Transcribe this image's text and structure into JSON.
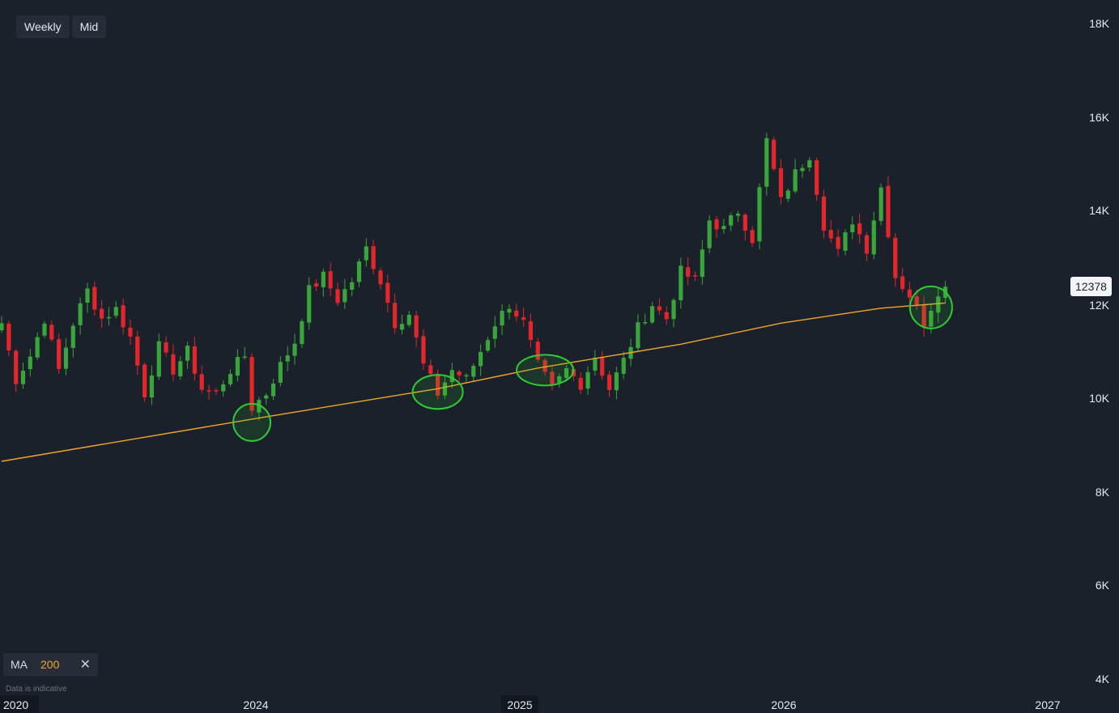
{
  "toolbar": {
    "interval_label": "Weekly",
    "price_label": "Mid"
  },
  "indicator": {
    "name": "MA",
    "period": "200",
    "remove_icon": "close-icon",
    "close_glyph": "✕"
  },
  "disclaimer": "Data is indicative",
  "last_price_label": "12378",
  "colors": {
    "background": "#1b212b",
    "up": "#3aa53a",
    "down": "#e3262c",
    "ma": "#f0a72a",
    "highlight": "#2ecc32"
  },
  "chart_data": {
    "type": "candlestick",
    "interval": "weekly",
    "y_ticks": [
      "18K",
      "16K",
      "14K",
      "12K",
      "10K",
      "8K",
      "6K",
      "4K"
    ],
    "x_ticks": [
      "2020",
      "2024",
      "2025",
      "2026",
      "2027"
    ],
    "ylim": [
      4000,
      18000
    ],
    "last_price": 12378,
    "overlay": {
      "name": "MA",
      "period": 200
    },
    "close_path": [
      [
        0,
        11600
      ],
      [
        2,
        10400
      ],
      [
        4,
        10900
      ],
      [
        6,
        11700
      ],
      [
        8,
        10600
      ],
      [
        10,
        11600
      ],
      [
        12,
        12300
      ],
      [
        14,
        11700
      ],
      [
        16,
        11900
      ],
      [
        18,
        11300
      ],
      [
        20,
        10100
      ],
      [
        22,
        11100
      ],
      [
        24,
        10600
      ],
      [
        26,
        11000
      ],
      [
        28,
        10200
      ],
      [
        30,
        10100
      ],
      [
        32,
        10600
      ],
      [
        34,
        10900
      ],
      [
        35,
        9800
      ],
      [
        37,
        10100
      ],
      [
        39,
        10700
      ],
      [
        41,
        11200
      ],
      [
        43,
        12300
      ],
      [
        45,
        12600
      ],
      [
        47,
        12100
      ],
      [
        49,
        12500
      ],
      [
        51,
        13200
      ],
      [
        53,
        12500
      ],
      [
        55,
        11600
      ],
      [
        57,
        11800
      ],
      [
        59,
        10700
      ],
      [
        61,
        10100
      ],
      [
        63,
        10600
      ],
      [
        65,
        10400
      ],
      [
        67,
        11000
      ],
      [
        69,
        11600
      ],
      [
        71,
        12000
      ],
      [
        73,
        11600
      ],
      [
        75,
        10700
      ],
      [
        77,
        10200
      ],
      [
        79,
        10600
      ],
      [
        81,
        10300
      ],
      [
        83,
        10900
      ],
      [
        85,
        10200
      ],
      [
        87,
        10800
      ],
      [
        89,
        11500
      ],
      [
        91,
        12000
      ],
      [
        93,
        11700
      ],
      [
        95,
        12700
      ],
      [
        97,
        12500
      ],
      [
        99,
        13800
      ],
      [
        101,
        13600
      ],
      [
        103,
        14000
      ],
      [
        105,
        13400
      ],
      [
        107,
        15500
      ],
      [
        109,
        14200
      ],
      [
        111,
        14800
      ],
      [
        113,
        15200
      ],
      [
        115,
        13700
      ],
      [
        117,
        13100
      ],
      [
        119,
        13800
      ],
      [
        121,
        13200
      ],
      [
        123,
        14500
      ],
      [
        125,
        12600
      ],
      [
        127,
        12200
      ],
      [
        129,
        11600
      ],
      [
        131,
        12300
      ],
      [
        132,
        12378
      ]
    ],
    "ma_points": [
      [
        0,
        8650
      ],
      [
        35,
        9550
      ],
      [
        61,
        10200
      ],
      [
        75,
        10640
      ],
      [
        95,
        11150
      ],
      [
        109,
        11600
      ],
      [
        123,
        11920
      ],
      [
        132,
        12030
      ]
    ],
    "highlights": [
      {
        "bar": 35
      },
      {
        "bar": 61
      },
      {
        "bar": 76
      },
      {
        "bar": 130
      }
    ]
  }
}
